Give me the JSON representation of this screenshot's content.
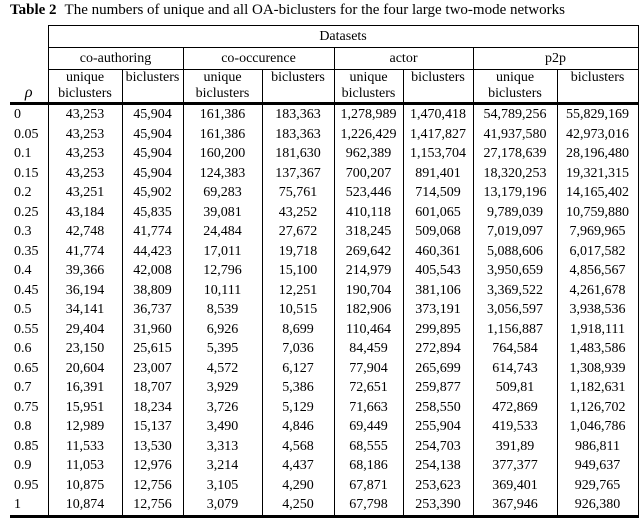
{
  "title": {
    "label": "Table 2",
    "text": "The numbers of unique and all OA-biclusters for the four large two-mode networks"
  },
  "table": {
    "datasets_header": "Datasets",
    "rho_symbol": "ρ",
    "groups": [
      {
        "name": "co-authoring"
      },
      {
        "name": "co-occurence"
      },
      {
        "name": "actor"
      },
      {
        "name": "p2p"
      }
    ],
    "sub_headers": {
      "unique": "unique biclusters",
      "all": "biclusters"
    },
    "rows": [
      {
        "rho": "0",
        "values": [
          "43,253",
          "45,904",
          "161,386",
          "183,363",
          "1,278,989",
          "1,470,418",
          "54,789,256",
          "55,829,169"
        ]
      },
      {
        "rho": "0.05",
        "values": [
          "43,253",
          "45,904",
          "161,386",
          "183,363",
          "1,226,429",
          "1,417,827",
          "41,937,580",
          "42,973,016"
        ]
      },
      {
        "rho": "0.1",
        "values": [
          "43,253",
          "45,904",
          "160,200",
          "181,630",
          "962,389",
          "1,153,704",
          "27,178,639",
          "28,196,480"
        ]
      },
      {
        "rho": "0.15",
        "values": [
          "43,253",
          "45,904",
          "124,383",
          "137,367",
          "700,207",
          "891,401",
          "18,320,253",
          "19,321,315"
        ]
      },
      {
        "rho": "0.2",
        "values": [
          "43,251",
          "45,902",
          "69,283",
          "75,761",
          "523,446",
          "714,509",
          "13,179,196",
          "14,165,402"
        ]
      },
      {
        "rho": "0.25",
        "values": [
          "43,184",
          "45,835",
          "39,081",
          "43,252",
          "410,118",
          "601,065",
          "9,789,039",
          "10,759,880"
        ]
      },
      {
        "rho": "0.3",
        "values": [
          "42,748",
          "41,774",
          "24,484",
          "27,672",
          "318,245",
          "509,068",
          "7,019,097",
          "7,969,965"
        ]
      },
      {
        "rho": "0.35",
        "values": [
          "41,774",
          "44,423",
          "17,011",
          "19,718",
          "269,642",
          "460,361",
          "5,088,606",
          "6,017,582"
        ]
      },
      {
        "rho": "0.4",
        "values": [
          "39,366",
          "42,008",
          "12,796",
          "15,100",
          "214,979",
          "405,543",
          "3,950,659",
          "4,856,567"
        ]
      },
      {
        "rho": "0.45",
        "values": [
          "36,194",
          "38,809",
          "10,111",
          "12,251",
          "190,704",
          "381,106",
          "3,369,522",
          "4,261,678"
        ]
      },
      {
        "rho": "0.5",
        "values": [
          "34,141",
          "36,737",
          "8,539",
          "10,515",
          "182,906",
          "373,191",
          "3,056,597",
          "3,938,536"
        ]
      },
      {
        "rho": "0.55",
        "values": [
          "29,404",
          "31,960",
          "6,926",
          "8,699",
          "110,464",
          "299,895",
          "1,156,887",
          "1,918,111"
        ]
      },
      {
        "rho": "0.6",
        "values": [
          "23,150",
          "25,615",
          "5,395",
          "7,036",
          "84,459",
          "272,894",
          "764,584",
          "1,483,586"
        ]
      },
      {
        "rho": "0.65",
        "values": [
          "20,604",
          "23,007",
          "4,572",
          "6,127",
          "77,904",
          "265,699",
          "614,743",
          "1,308,939"
        ]
      },
      {
        "rho": "0.7",
        "values": [
          "16,391",
          "18,707",
          "3,929",
          "5,386",
          "72,651",
          "259,877",
          "509,81",
          "1,182,631"
        ]
      },
      {
        "rho": "0.75",
        "values": [
          "15,951",
          "18,234",
          "3,726",
          "5,129",
          "71,663",
          "258,550",
          "472,869",
          "1,126,702"
        ]
      },
      {
        "rho": "0.8",
        "values": [
          "12,989",
          "15,137",
          "3,490",
          "4,846",
          "69,449",
          "255,904",
          "419,533",
          "1,046,786"
        ]
      },
      {
        "rho": "0.85",
        "values": [
          "11,533",
          "13,530",
          "3,313",
          "4,568",
          "68,555",
          "254,703",
          "391,89",
          "986,811"
        ]
      },
      {
        "rho": "0.9",
        "values": [
          "11,053",
          "12,976",
          "3,214",
          "4,437",
          "68,186",
          "254,138",
          "377,377",
          "949,637"
        ]
      },
      {
        "rho": "0.95",
        "values": [
          "10,875",
          "12,756",
          "3,105",
          "4,290",
          "67,871",
          "253,623",
          "369,401",
          "929,765"
        ]
      },
      {
        "rho": "1",
        "values": [
          "10,874",
          "12,756",
          "3,079",
          "4,250",
          "67,798",
          "253,390",
          "367,946",
          "926,380"
        ]
      }
    ]
  }
}
